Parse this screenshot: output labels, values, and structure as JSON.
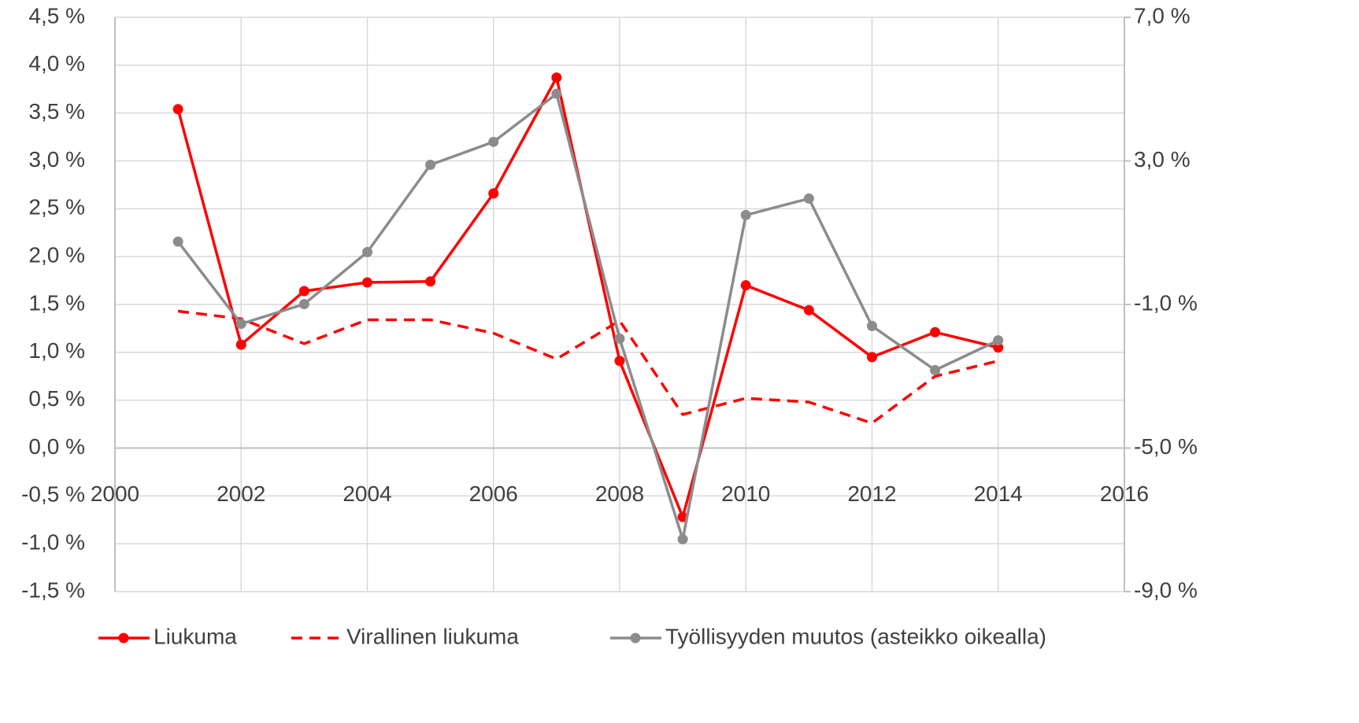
{
  "chart_data": {
    "type": "line",
    "x": [
      2001,
      2002,
      2003,
      2004,
      2005,
      2006,
      2007,
      2008,
      2009,
      2010,
      2011,
      2012,
      2013,
      2014
    ],
    "series": [
      {
        "name": "Liukuma",
        "color": "#ff0000",
        "style": "solid",
        "markers": true,
        "values": [
          3.54,
          1.08,
          1.64,
          1.73,
          1.74,
          2.66,
          3.87,
          0.91,
          -0.72,
          1.7,
          1.44,
          0.95,
          1.21,
          1.05
        ]
      },
      {
        "name": "Virallinen liukuma",
        "color": "#ff0000",
        "style": "dashed",
        "markers": false,
        "values": [
          1.43,
          1.35,
          1.09,
          1.34,
          1.34,
          1.2,
          0.93,
          1.33,
          0.35,
          0.52,
          0.48,
          0.26,
          0.75,
          0.91
        ]
      },
      {
        "name": "Työllisyyden muutos (asteikko oikealla)",
        "color": "#8c8c8c",
        "style": "solid",
        "markers": true,
        "axis": "y2",
        "values": [
          0.75,
          -1.54,
          -0.99,
          0.46,
          2.89,
          3.53,
          4.87,
          -1.95,
          -7.54,
          1.49,
          1.95,
          -1.6,
          -2.83,
          -2.0
        ]
      }
    ],
    "xlim": [
      2000,
      2016
    ],
    "xticks": [
      2000,
      2002,
      2004,
      2006,
      2008,
      2010,
      2012,
      2014,
      2016
    ],
    "ylim": [
      -1.5,
      4.5
    ],
    "yticks": [
      {
        "value": -1.5,
        "label": "-1,5 %"
      },
      {
        "value": -1.0,
        "label": "-1,0 %"
      },
      {
        "value": -0.5,
        "label": "-0,5 %"
      },
      {
        "value": 0,
        "label": "0,0 %"
      },
      {
        "value": 0.5,
        "label": "0,5 %"
      },
      {
        "value": 1.0,
        "label": "1,0 %"
      },
      {
        "value": 1.5,
        "label": "1,5 %"
      },
      {
        "value": 2.0,
        "label": "2,0 %"
      },
      {
        "value": 2.5,
        "label": "2,5 %"
      },
      {
        "value": 3.0,
        "label": "3,0 %"
      },
      {
        "value": 3.5,
        "label": "3,5 %"
      },
      {
        "value": 4.0,
        "label": "4,0 %"
      },
      {
        "value": 4.5,
        "label": "4,5 %"
      }
    ],
    "y2lim": [
      -9,
      7
    ],
    "y2ticks": [
      {
        "value": -9,
        "label": "-9,0 %"
      },
      {
        "value": -5,
        "label": "-5,0 %"
      },
      {
        "value": -1,
        "label": "-1,0 %"
      },
      {
        "value": 3,
        "label": "3,0 %"
      },
      {
        "value": 7,
        "label": "7,0 %"
      }
    ],
    "grid": true,
    "legend": "bottom"
  }
}
